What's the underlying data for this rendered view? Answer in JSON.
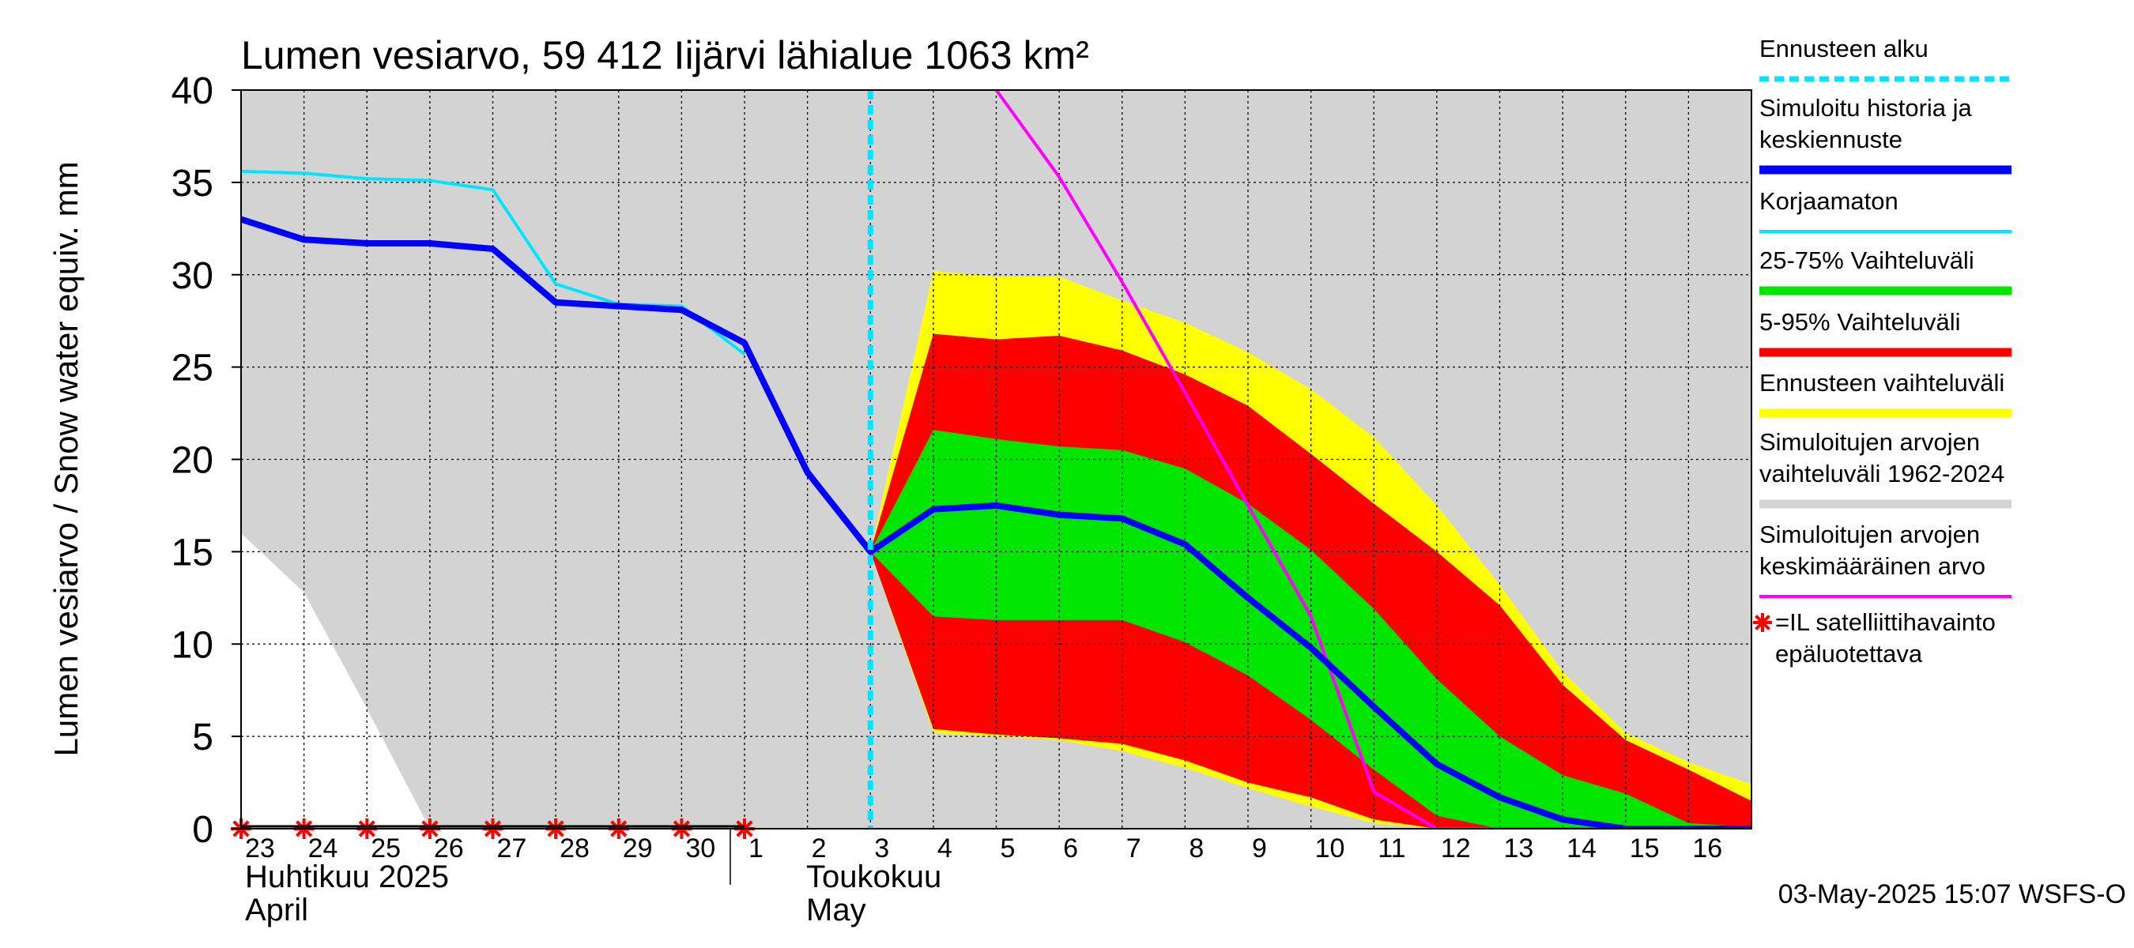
{
  "chart_data": {
    "type": "area",
    "title": "Lumen vesiarvo, 59 412 Iijärvi lähialue 1063 km²",
    "ylabel": "Lumen vesiarvo / Snow water equiv.    mm",
    "ylim": [
      0,
      40
    ],
    "y_ticks": [
      "0",
      "5",
      "10",
      "15",
      "20",
      "25",
      "30",
      "35",
      "40"
    ],
    "x_range": [
      "2025-04-23",
      "2025-05-17"
    ],
    "x_tick_labels": [
      "23",
      "24",
      "25",
      "26",
      "27",
      "28",
      "29",
      "30",
      "1",
      "2",
      "3",
      "4",
      "5",
      "6",
      "7",
      "8",
      "9",
      "10",
      "11",
      "12",
      "13",
      "14",
      "15",
      "16"
    ],
    "month_labels": [
      {
        "fi": "Huhtikuu  2025",
        "en": "April"
      },
      {
        "fi": "Toukokuu",
        "en": "May"
      }
    ],
    "grid": true,
    "legend_placement": "right",
    "forecast_start": "2025-05-03",
    "series": [
      {
        "key": "historical_range",
        "name": "Simuloitujen arvojen vaihteluväli 1962-2024",
        "color": "#d3d3d3",
        "x": [
          "2025-04-23",
          "2025-04-24",
          "2025-04-25",
          "2025-04-26",
          "2025-04-27",
          "2025-04-28",
          "2025-04-29",
          "2025-04-30",
          "2025-05-01",
          "2025-05-02",
          "2025-05-03",
          "2025-05-04",
          "2025-05-05",
          "2025-05-06",
          "2025-05-07",
          "2025-05-08",
          "2025-05-09",
          "2025-05-10",
          "2025-05-11",
          "2025-05-12",
          "2025-05-13",
          "2025-05-14",
          "2025-05-15",
          "2025-05-16",
          "2025-05-17"
        ],
        "low": [
          16,
          12.8,
          6.5,
          0,
          0,
          0,
          0,
          0,
          0,
          0,
          0,
          0,
          0,
          0,
          0,
          0,
          0,
          0,
          0,
          0,
          0,
          0,
          0,
          0,
          0
        ],
        "high": [
          40,
          40,
          40,
          40,
          40,
          40,
          40,
          40,
          40,
          40,
          40,
          40,
          40,
          40,
          40,
          40,
          40,
          40,
          40,
          40,
          40,
          40,
          40,
          40,
          40
        ]
      },
      {
        "key": "forecast_range",
        "name": "Ennusteen vaihteluväli",
        "color": "#ffff00",
        "x": [
          "2025-05-03",
          "2025-05-04",
          "2025-05-05",
          "2025-05-06",
          "2025-05-07",
          "2025-05-08",
          "2025-05-09",
          "2025-05-10",
          "2025-05-11",
          "2025-05-12",
          "2025-05-13",
          "2025-05-14",
          "2025-05-15",
          "2025-05-16",
          "2025-05-17"
        ],
        "low": [
          15,
          5.2,
          5,
          4.8,
          4.2,
          3.3,
          2.2,
          1.2,
          0.3,
          0,
          0,
          0,
          0,
          0,
          0
        ],
        "high": [
          15,
          30.2,
          29.9,
          29.9,
          28.6,
          27.4,
          25.8,
          23.8,
          21.2,
          17.5,
          13.2,
          8.5,
          5.2,
          3.6,
          2.4
        ]
      },
      {
        "key": "p5_95",
        "name": "5-95% Vaihteluväli",
        "color": "#ff0000",
        "x": [
          "2025-05-03",
          "2025-05-04",
          "2025-05-05",
          "2025-05-06",
          "2025-05-07",
          "2025-05-08",
          "2025-05-09",
          "2025-05-10",
          "2025-05-11",
          "2025-05-12",
          "2025-05-13",
          "2025-05-14",
          "2025-05-15",
          "2025-05-16",
          "2025-05-17"
        ],
        "low": [
          15,
          5.4,
          5.1,
          4.9,
          4.6,
          3.7,
          2.5,
          1.7,
          0.5,
          0,
          0,
          0,
          0,
          0,
          0
        ],
        "high": [
          15,
          26.8,
          26.5,
          26.7,
          25.9,
          24.6,
          22.9,
          20.3,
          17.6,
          15,
          12.1,
          7.8,
          4.8,
          3.2,
          1.5
        ]
      },
      {
        "key": "p25_75",
        "name": "25-75% Vaihteluväli",
        "color": "#00e600",
        "x": [
          "2025-05-03",
          "2025-05-04",
          "2025-05-05",
          "2025-05-06",
          "2025-05-07",
          "2025-05-08",
          "2025-05-09",
          "2025-05-10",
          "2025-05-11",
          "2025-05-12",
          "2025-05-13",
          "2025-05-14",
          "2025-05-15",
          "2025-05-16",
          "2025-05-17"
        ],
        "low": [
          15,
          11.5,
          11.3,
          11.3,
          11.3,
          10.1,
          8.3,
          5.9,
          3.2,
          0.7,
          0,
          0,
          0,
          0,
          0
        ],
        "high": [
          15,
          21.6,
          21.1,
          20.7,
          20.5,
          19.5,
          17.6,
          15.1,
          11.9,
          8.1,
          5,
          2.9,
          1.9,
          0.3,
          0.1
        ]
      },
      {
        "key": "mean",
        "name": "Simuloitujen arvojen keskimääräinen arvo",
        "color": "#ff00ff",
        "x": [
          "2025-05-05",
          "2025-05-06",
          "2025-05-07",
          "2025-05-08",
          "2025-05-09",
          "2025-05-10",
          "2025-05-11",
          "2025-05-12",
          "2025-05-13",
          "2025-05-14",
          "2025-05-15",
          "2025-05-16",
          "2025-05-17"
        ],
        "y": [
          40,
          35.3,
          29.6,
          23.6,
          17.5,
          11.5,
          2,
          0,
          0,
          0,
          0,
          0,
          0
        ]
      },
      {
        "key": "uncorrected",
        "name": "Korjaamaton",
        "color": "#00e5ff",
        "x": [
          "2025-04-23",
          "2025-04-24",
          "2025-04-25",
          "2025-04-26",
          "2025-04-27",
          "2025-04-28",
          "2025-04-29",
          "2025-04-30",
          "2025-05-01"
        ],
        "y": [
          35.6,
          35.5,
          35.2,
          35.1,
          34.6,
          29.5,
          28.4,
          28.3,
          25.7
        ]
      },
      {
        "key": "simulated",
        "name": "Simuloitu historia ja keskiennuste",
        "color": "#0000ff",
        "x": [
          "2025-04-23",
          "2025-04-24",
          "2025-04-25",
          "2025-04-26",
          "2025-04-27",
          "2025-04-28",
          "2025-04-29",
          "2025-04-30",
          "2025-05-01",
          "2025-05-02",
          "2025-05-03",
          "2025-05-04",
          "2025-05-05",
          "2025-05-06",
          "2025-05-07",
          "2025-05-08",
          "2025-05-09",
          "2025-05-10",
          "2025-05-11",
          "2025-05-12",
          "2025-05-13",
          "2025-05-14",
          "2025-05-15",
          "2025-05-16",
          "2025-05-17"
        ],
        "y": [
          33,
          31.9,
          31.7,
          31.7,
          31.4,
          28.5,
          28.3,
          28.1,
          26.3,
          19.3,
          15,
          17.3,
          17.5,
          17,
          16.8,
          15.4,
          12.5,
          9.8,
          6.6,
          3.5,
          1.7,
          0.5,
          0,
          0,
          0
        ]
      }
    ],
    "satellite_observations": {
      "x": [
        "2025-04-23",
        "2025-04-24",
        "2025-04-25",
        "2025-04-26",
        "2025-04-27",
        "2025-04-28",
        "2025-04-29",
        "2025-04-30",
        "2025-05-01"
      ],
      "y": [
        0,
        0,
        0,
        0,
        0,
        0,
        0,
        0,
        0
      ],
      "color": "#ff0000"
    },
    "legend": [
      {
        "key": "forecast_start",
        "lines": [
          "Ennusteen alku"
        ],
        "color": "#00e5ff",
        "style": "dashed"
      },
      {
        "key": "simulated",
        "lines": [
          "Simuloitu historia ja",
          "keskiennuste"
        ],
        "color": "#0000ff",
        "style": "thick"
      },
      {
        "key": "uncorrected",
        "lines": [
          "Korjaamaton"
        ],
        "color": "#00e5ff",
        "style": "line"
      },
      {
        "key": "p25_75",
        "lines": [
          "25-75% Vaihteluväli"
        ],
        "color": "#00e600",
        "style": "thick"
      },
      {
        "key": "p5_95",
        "lines": [
          "5-95% Vaihteluväli"
        ],
        "color": "#ff0000",
        "style": "thick"
      },
      {
        "key": "forecast_range",
        "lines": [
          "Ennusteen vaihteluväli"
        ],
        "color": "#ffff00",
        "style": "thick"
      },
      {
        "key": "historical_range",
        "lines": [
          "Simuloitujen arvojen",
          "vaihteluväli 1962-2024"
        ],
        "color": "#d3d3d3",
        "style": "thick"
      },
      {
        "key": "mean",
        "lines": [
          "Simuloitujen arvojen",
          "keskimääräinen arvo"
        ],
        "color": "#ff00ff",
        "style": "line"
      },
      {
        "key": "satellite",
        "lines": [
          "=IL satelliittihavainto",
          "epäluotettava"
        ],
        "color": "#ff0000",
        "style": "star"
      }
    ],
    "footer_timestamp": "03-May-2025 15:07 WSFS-O"
  }
}
